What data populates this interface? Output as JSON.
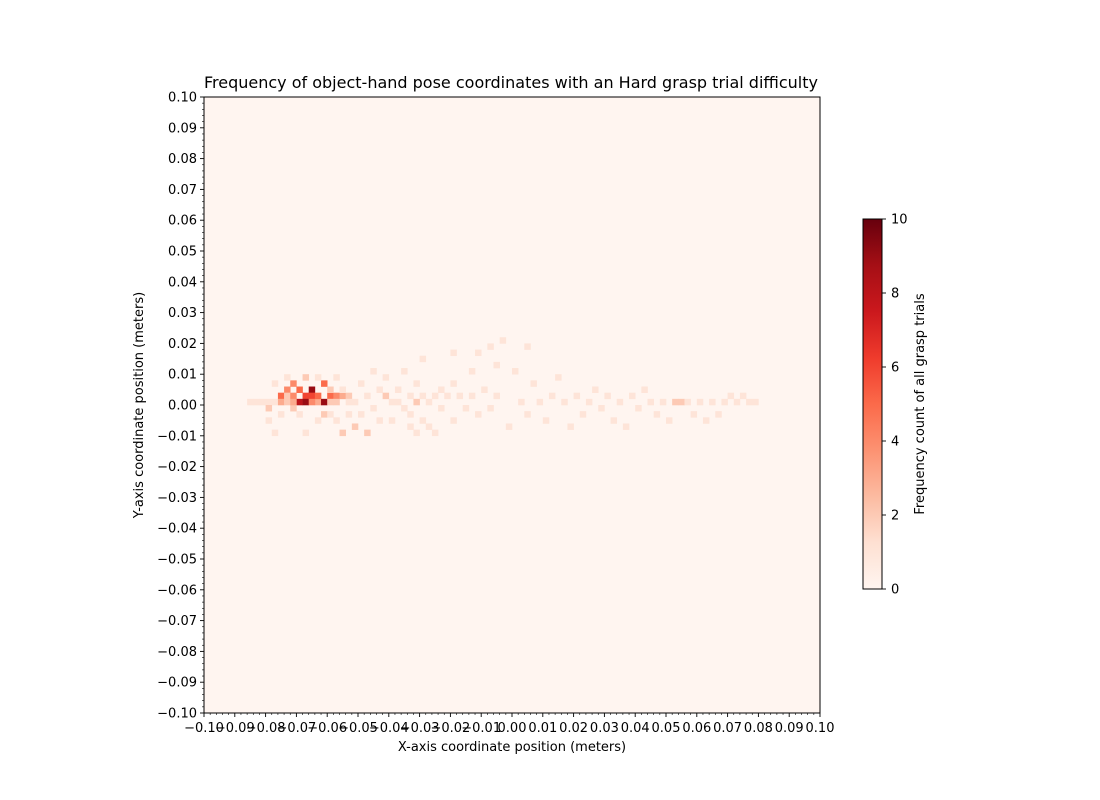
{
  "chart_data": {
    "type": "heatmap",
    "title": "Frequency of object-hand pose coordinates with an Hard grasp trial difficulty",
    "xlabel": "X-axis coordinate position (meters)",
    "ylabel": "Y-axis coordinate position (meters)",
    "xlim": [
      -0.1,
      0.1
    ],
    "ylim": [
      -0.1,
      0.1
    ],
    "bin_size": 0.002,
    "x_ticks": [
      "−0.10",
      "−0.09",
      "−0.08",
      "−0.07",
      "−0.06",
      "−0.05",
      "−0.04",
      "−0.03",
      "−0.02",
      "−0.01",
      "0.00",
      "0.01",
      "0.02",
      "0.03",
      "0.04",
      "0.05",
      "0.06",
      "0.07",
      "0.08",
      "0.09",
      "0.10"
    ],
    "y_ticks": [
      "−0.10",
      "−0.09",
      "−0.08",
      "−0.07",
      "−0.06",
      "−0.05",
      "−0.04",
      "−0.03",
      "−0.02",
      "−0.01",
      "0.00",
      "0.01",
      "0.02",
      "0.03",
      "0.04",
      "0.05",
      "0.06",
      "0.07",
      "0.08",
      "0.09",
      "0.10"
    ],
    "colorbar": {
      "label": "Frequency count of all grasp trials",
      "range": [
        0,
        10
      ],
      "ticks": [
        "0",
        "2",
        "4",
        "6",
        "8",
        "10"
      ],
      "colormap": [
        "#fff5f0",
        "#fee0d2",
        "#fcbba1",
        "#fc9272",
        "#fb6a4a",
        "#ef3b2c",
        "#cb181d",
        "#a50f15",
        "#67000d"
      ]
    },
    "grid": false,
    "cells": [
      [
        -0.079,
        0.001,
        1
      ],
      [
        -0.077,
        0.001,
        1
      ],
      [
        -0.075,
        0.003,
        5
      ],
      [
        -0.073,
        0.005,
        4
      ],
      [
        -0.073,
        0.003,
        2
      ],
      [
        -0.071,
        0.007,
        4
      ],
      [
        -0.071,
        0.003,
        4
      ],
      [
        -0.069,
        0.001,
        8
      ],
      [
        -0.069,
        0.005,
        5
      ],
      [
        -0.067,
        0.003,
        6
      ],
      [
        -0.067,
        0.001,
        9
      ],
      [
        -0.065,
        0.005,
        9
      ],
      [
        -0.065,
        0.003,
        6
      ],
      [
        -0.063,
        0.001,
        3
      ],
      [
        -0.063,
        0.003,
        5
      ],
      [
        -0.061,
        0.007,
        5
      ],
      [
        -0.061,
        0.001,
        9
      ],
      [
        -0.059,
        0.003,
        5
      ],
      [
        -0.057,
        0.003,
        4
      ],
      [
        -0.055,
        0.003,
        3
      ],
      [
        -0.053,
        0.003,
        2
      ],
      [
        -0.075,
        -0.003,
        1
      ],
      [
        -0.071,
        -0.001,
        2
      ],
      [
        -0.069,
        -0.003,
        1
      ],
      [
        -0.077,
        0.007,
        1
      ],
      [
        -0.073,
        0.009,
        1
      ],
      [
        -0.067,
        0.009,
        2
      ],
      [
        -0.063,
        0.009,
        1
      ],
      [
        -0.059,
        0.005,
        2
      ],
      [
        -0.057,
        0.001,
        2
      ],
      [
        -0.061,
        -0.003,
        2
      ],
      [
        -0.057,
        -0.005,
        1
      ],
      [
        -0.055,
        -0.009,
        2
      ],
      [
        -0.081,
        0.001,
        1
      ],
      [
        -0.083,
        0.001,
        1
      ],
      [
        -0.079,
        -0.005,
        1
      ],
      [
        -0.077,
        -0.009,
        1
      ],
      [
        -0.067,
        -0.009,
        1
      ],
      [
        -0.063,
        -0.005,
        1
      ],
      [
        -0.059,
        -0.003,
        1
      ],
      [
        -0.057,
        0.009,
        1
      ],
      [
        -0.055,
        0.005,
        1
      ],
      [
        -0.053,
        -0.003,
        1
      ],
      [
        -0.051,
        0.001,
        1
      ],
      [
        -0.051,
        -0.007,
        2
      ],
      [
        -0.049,
        0.007,
        1
      ],
      [
        -0.049,
        -0.003,
        1
      ],
      [
        -0.047,
        -0.009,
        2
      ],
      [
        -0.047,
        0.003,
        1
      ],
      [
        -0.045,
        0.011,
        1
      ],
      [
        -0.045,
        -0.001,
        1
      ],
      [
        -0.043,
        0.005,
        1
      ],
      [
        -0.043,
        -0.005,
        1
      ],
      [
        -0.041,
        0.003,
        2
      ],
      [
        -0.041,
        0.009,
        1
      ],
      [
        -0.039,
        0.001,
        1
      ],
      [
        -0.039,
        -0.005,
        1
      ],
      [
        -0.037,
        0.001,
        1
      ],
      [
        -0.037,
        0.005,
        1
      ],
      [
        -0.035,
        0.011,
        1
      ],
      [
        -0.035,
        -0.001,
        1
      ],
      [
        -0.033,
        -0.003,
        1
      ],
      [
        -0.033,
        0.003,
        1
      ],
      [
        -0.033,
        -0.007,
        1
      ],
      [
        -0.031,
        0.001,
        2
      ],
      [
        -0.031,
        0.007,
        1
      ],
      [
        -0.031,
        -0.009,
        1
      ],
      [
        -0.029,
        0.003,
        1
      ],
      [
        -0.029,
        -0.005,
        1
      ],
      [
        -0.029,
        0.015,
        1
      ],
      [
        -0.027,
        0.001,
        1
      ],
      [
        -0.027,
        -0.007,
        1
      ],
      [
        -0.025,
        0.003,
        1
      ],
      [
        -0.025,
        -0.009,
        1
      ],
      [
        -0.023,
        0.005,
        1
      ],
      [
        -0.023,
        -0.001,
        1
      ],
      [
        -0.021,
        0.003,
        1
      ],
      [
        -0.019,
        0.017,
        1
      ],
      [
        -0.019,
        0.007,
        1
      ],
      [
        -0.019,
        -0.005,
        1
      ],
      [
        -0.017,
        0.003,
        1
      ],
      [
        -0.015,
        -0.001,
        1
      ],
      [
        -0.013,
        0.011,
        1
      ],
      [
        -0.013,
        0.003,
        1
      ],
      [
        -0.011,
        0.017,
        1
      ],
      [
        -0.011,
        -0.003,
        1
      ],
      [
        -0.009,
        0.005,
        1
      ],
      [
        -0.007,
        0.019,
        1
      ],
      [
        -0.007,
        -0.001,
        1
      ],
      [
        -0.005,
        0.013,
        1
      ],
      [
        -0.005,
        0.003,
        1
      ],
      [
        -0.003,
        0.021,
        1
      ],
      [
        -0.001,
        -0.007,
        1
      ],
      [
        0.001,
        0.011,
        1
      ],
      [
        0.003,
        0.001,
        1
      ],
      [
        0.005,
        0.019,
        1
      ],
      [
        0.005,
        -0.003,
        1
      ],
      [
        0.007,
        0.007,
        1
      ],
      [
        0.009,
        0.001,
        1
      ],
      [
        0.011,
        -0.005,
        1
      ],
      [
        0.013,
        0.003,
        1
      ],
      [
        0.015,
        0.009,
        1
      ],
      [
        0.017,
        0.001,
        1
      ],
      [
        0.019,
        -0.007,
        1
      ],
      [
        0.021,
        0.003,
        1
      ],
      [
        0.023,
        -0.003,
        1
      ],
      [
        0.025,
        0.001,
        1
      ],
      [
        0.027,
        0.005,
        1
      ],
      [
        0.029,
        -0.001,
        1
      ],
      [
        0.031,
        0.003,
        1
      ],
      [
        0.033,
        -0.005,
        1
      ],
      [
        0.035,
        0.001,
        1
      ],
      [
        0.037,
        -0.007,
        1
      ],
      [
        0.039,
        0.003,
        1
      ],
      [
        0.041,
        -0.001,
        1
      ],
      [
        0.043,
        0.005,
        1
      ],
      [
        0.045,
        0.001,
        1
      ],
      [
        0.047,
        -0.003,
        1
      ],
      [
        0.049,
        0.001,
        1
      ],
      [
        0.051,
        -0.005,
        1
      ],
      [
        0.053,
        0.001,
        2
      ],
      [
        0.055,
        0.001,
        2
      ],
      [
        0.057,
        0.001,
        1
      ],
      [
        0.059,
        -0.003,
        1
      ],
      [
        0.061,
        0.001,
        1
      ],
      [
        0.063,
        -0.005,
        1
      ],
      [
        0.065,
        0.001,
        1
      ],
      [
        0.067,
        -0.003,
        1
      ],
      [
        0.069,
        0.001,
        1
      ],
      [
        0.071,
        0.003,
        1
      ],
      [
        0.073,
        0.001,
        1
      ],
      [
        0.075,
        0.003,
        1
      ],
      [
        0.077,
        0.001,
        1
      ],
      [
        0.079,
        0.001,
        1
      ],
      [
        -0.085,
        0.001,
        1
      ],
      [
        -0.079,
        -0.001,
        2
      ],
      [
        -0.075,
        0.001,
        3
      ],
      [
        -0.073,
        0.001,
        2
      ],
      [
        -0.071,
        0.001,
        3
      ],
      [
        -0.065,
        0.001,
        4
      ],
      [
        -0.059,
        0.001,
        2
      ],
      [
        -0.053,
        0.001,
        1
      ]
    ]
  }
}
